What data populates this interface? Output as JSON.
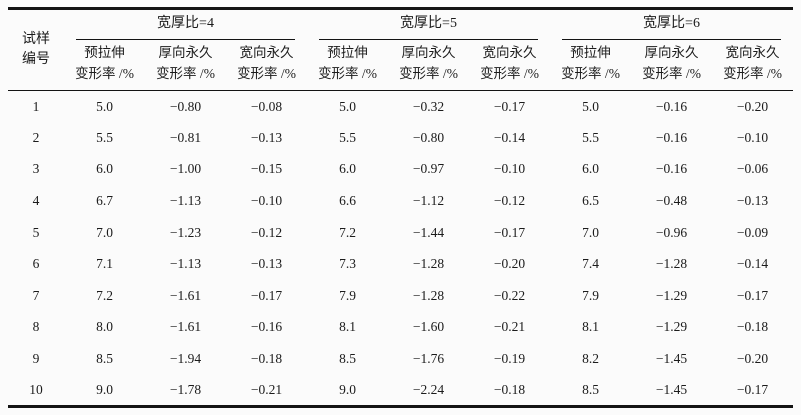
{
  "page": {
    "background": "#fbfbfb",
    "text_color": "#1b1b1b",
    "rule_color": "#141414"
  },
  "table": {
    "corner_header": {
      "line1": "试样",
      "line2": "编号"
    },
    "groups": [
      {
        "label": "宽厚比=4"
      },
      {
        "label": "宽厚比=5"
      },
      {
        "label": "宽厚比=6"
      }
    ],
    "sub_headers": [
      {
        "line1": "预拉伸",
        "line2": "变形率 /%"
      },
      {
        "line1": "厚向永久",
        "line2": "变形率 /%"
      },
      {
        "line1": "宽向永久",
        "line2": "变形率 /%"
      }
    ],
    "rows": [
      {
        "id": "1",
        "cells": [
          "5.0",
          "−0.80",
          "−0.08",
          "5.0",
          "−0.32",
          "−0.17",
          "5.0",
          "−0.16",
          "−0.20"
        ]
      },
      {
        "id": "2",
        "cells": [
          "5.5",
          "−0.81",
          "−0.13",
          "5.5",
          "−0.80",
          "−0.14",
          "5.5",
          "−0.16",
          "−0.10"
        ]
      },
      {
        "id": "3",
        "cells": [
          "6.0",
          "−1.00",
          "−0.15",
          "6.0",
          "−0.97",
          "−0.10",
          "6.0",
          "−0.16",
          "−0.06"
        ]
      },
      {
        "id": "4",
        "cells": [
          "6.7",
          "−1.13",
          "−0.10",
          "6.6",
          "−1.12",
          "−0.12",
          "6.5",
          "−0.48",
          "−0.13"
        ]
      },
      {
        "id": "5",
        "cells": [
          "7.0",
          "−1.23",
          "−0.12",
          "7.2",
          "−1.44",
          "−0.17",
          "7.0",
          "−0.96",
          "−0.09"
        ]
      },
      {
        "id": "6",
        "cells": [
          "7.1",
          "−1.13",
          "−0.13",
          "7.3",
          "−1.28",
          "−0.20",
          "7.4",
          "−1.28",
          "−0.14"
        ]
      },
      {
        "id": "7",
        "cells": [
          "7.2",
          "−1.61",
          "−0.17",
          "7.9",
          "−1.28",
          "−0.22",
          "7.9",
          "−1.29",
          "−0.17"
        ]
      },
      {
        "id": "8",
        "cells": [
          "8.0",
          "−1.61",
          "−0.16",
          "8.1",
          "−1.60",
          "−0.21",
          "8.1",
          "−1.29",
          "−0.18"
        ]
      },
      {
        "id": "9",
        "cells": [
          "8.5",
          "−1.94",
          "−0.18",
          "8.5",
          "−1.76",
          "−0.19",
          "8.2",
          "−1.45",
          "−0.20"
        ]
      },
      {
        "id": "10",
        "cells": [
          "9.0",
          "−1.78",
          "−0.21",
          "9.0",
          "−2.24",
          "−0.18",
          "8.5",
          "−1.45",
          "−0.17"
        ]
      }
    ]
  }
}
